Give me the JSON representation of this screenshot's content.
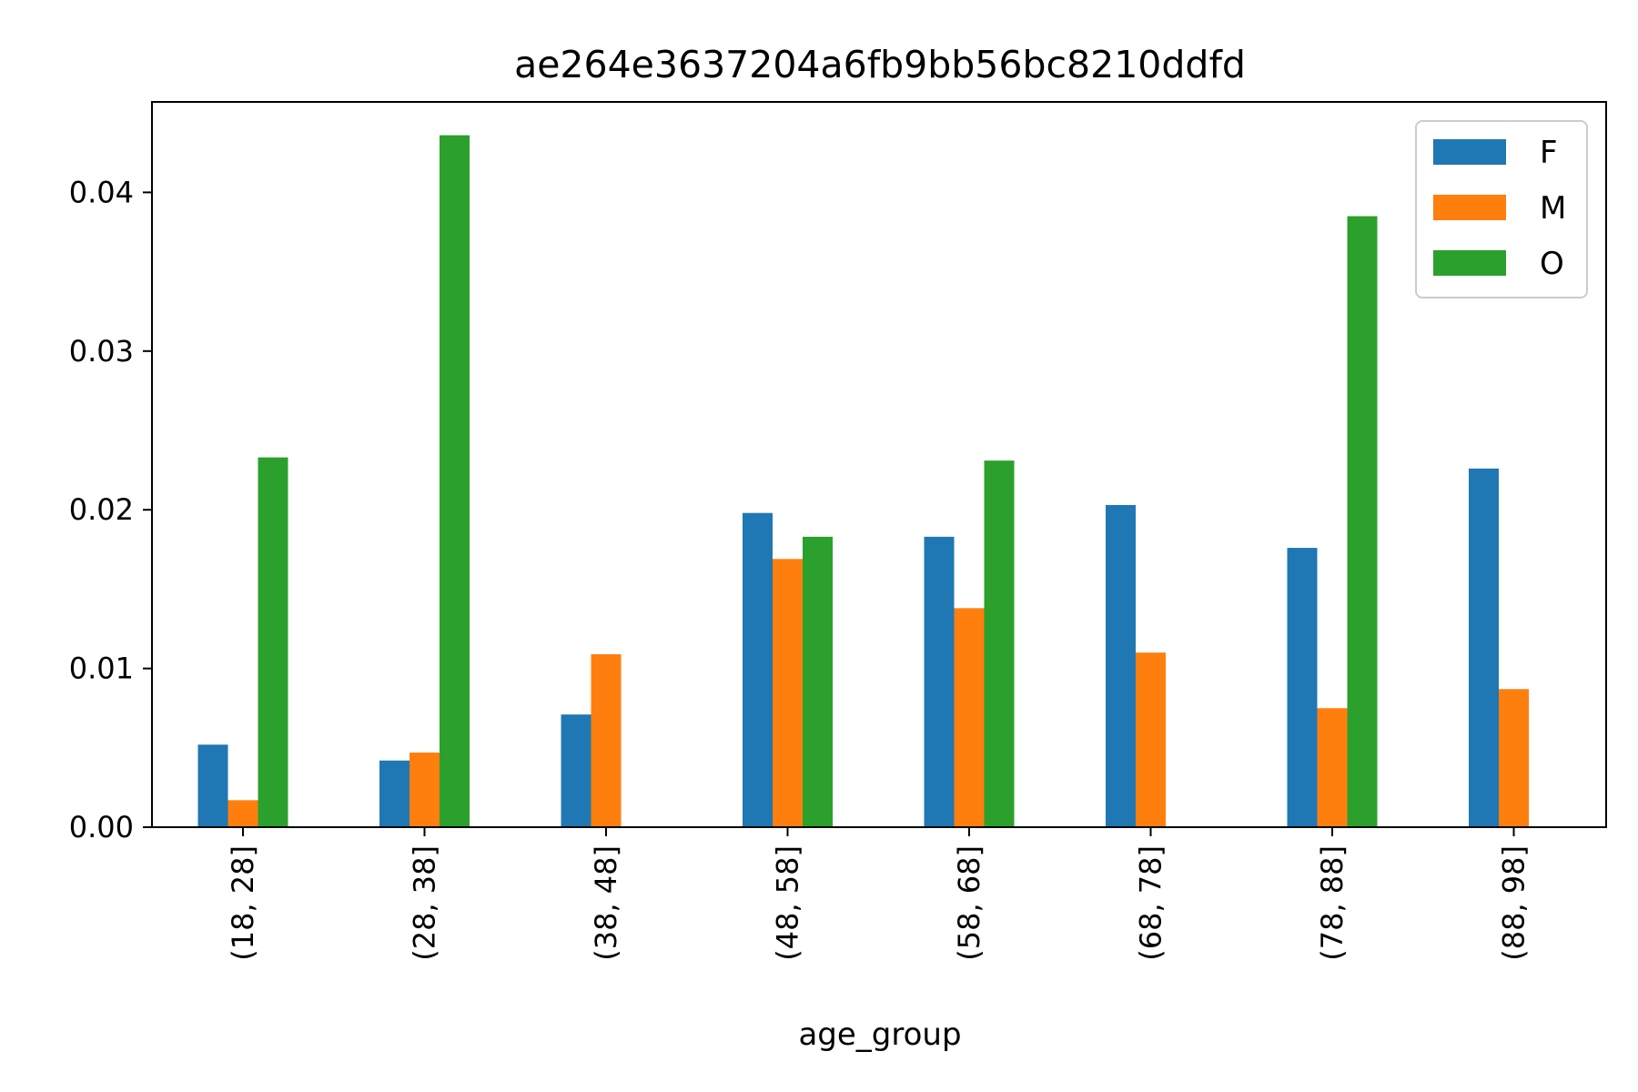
{
  "chart_data": {
    "type": "bar",
    "title": "ae264e3637204a6fb9bb56bc8210ddfd",
    "xlabel": "age_group",
    "ylabel": "",
    "categories": [
      "(18, 28]",
      "(28, 38]",
      "(38, 48]",
      "(48, 58]",
      "(58, 68]",
      "(68, 78]",
      "(78, 88]",
      "(88, 98]"
    ],
    "series": [
      {
        "name": "F",
        "color": "#1f77b4",
        "values": [
          0.0052,
          0.0042,
          0.0071,
          0.0198,
          0.0183,
          0.0203,
          0.0176,
          0.0226
        ]
      },
      {
        "name": "M",
        "color": "#ff7f0e",
        "values": [
          0.0017,
          0.0047,
          0.0109,
          0.0169,
          0.0138,
          0.011,
          0.0075,
          0.0087
        ]
      },
      {
        "name": "O",
        "color": "#2ca02c",
        "values": [
          0.0233,
          0.0436,
          0,
          0.0183,
          0.0231,
          0,
          0.0385,
          0
        ]
      }
    ],
    "ylim": [
      0,
      0.0457
    ],
    "yticks": [
      0.0,
      0.01,
      0.02,
      0.03,
      0.04
    ],
    "ytick_labels": [
      "0.00",
      "0.01",
      "0.02",
      "0.03",
      "0.04"
    ],
    "grid": false,
    "legend_position": "top-right"
  }
}
